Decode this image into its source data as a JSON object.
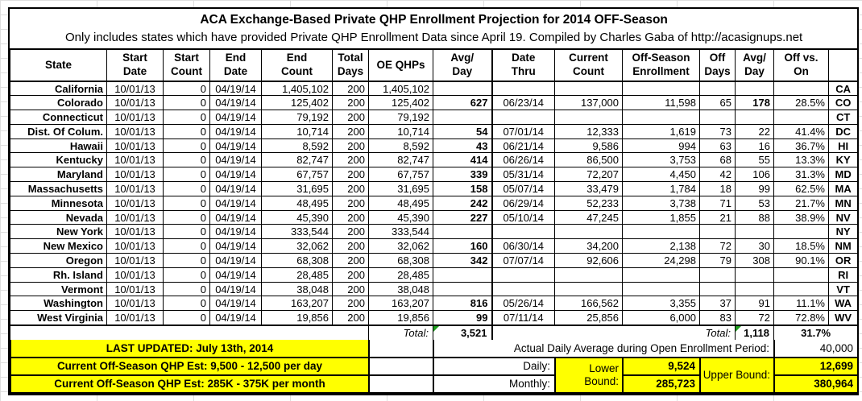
{
  "header": {
    "title": "ACA Exchange-Based Private QHP Enrollment Projection for 2014 OFF-Season",
    "subtitle": "Only includes states which have provided Private QHP Enrollment Data since April 19. Compiled by Charles Gaba of http://acasignups.net"
  },
  "table": {
    "columns": [
      {
        "key": "state",
        "label": "State"
      },
      {
        "key": "start_date",
        "label": "Start\nDate"
      },
      {
        "key": "start_count",
        "label": "Start\nCount"
      },
      {
        "key": "end_date",
        "label": "End\nDate"
      },
      {
        "key": "end_count",
        "label": "End\nCount"
      },
      {
        "key": "total_days",
        "label": "Total\nDays"
      },
      {
        "key": "oe_qhps",
        "label": "OE QHPs"
      },
      {
        "key": "avg_day",
        "label": "Avg/\nDay"
      },
      {
        "key": "date_thru",
        "label": "Date\nThru"
      },
      {
        "key": "current_count",
        "label": "Current\nCount"
      },
      {
        "key": "off_enroll",
        "label": "Off-Season\nEnrollment"
      },
      {
        "key": "off_days",
        "label": "Off\nDays"
      },
      {
        "key": "off_avg",
        "label": "Avg/\nDay"
      },
      {
        "key": "off_vs_on",
        "label": "Off vs.\nOn"
      },
      {
        "key": "abbr",
        "label": ""
      }
    ],
    "rows": [
      {
        "state": "California",
        "start_date": "10/01/13",
        "start_count": "0",
        "end_date": "04/19/14",
        "end_count": "1,405,102",
        "total_days": "200",
        "oe_qhps": "1,405,102",
        "avg_day": "",
        "date_thru": "",
        "current_count": "",
        "off_enroll": "",
        "off_days": "",
        "off_avg": "",
        "off_vs_on": "",
        "abbr": "CA"
      },
      {
        "state": "Colorado",
        "start_date": "10/01/13",
        "start_count": "0",
        "end_date": "04/19/14",
        "end_count": "125,402",
        "total_days": "200",
        "oe_qhps": "125,402",
        "avg_day": "627",
        "date_thru": "06/23/14",
        "current_count": "137,000",
        "off_enroll": "11,598",
        "off_days": "65",
        "off_avg": "178",
        "off_avg_bold": true,
        "off_vs_on": "28.5%",
        "abbr": "CO"
      },
      {
        "state": "Connecticut",
        "start_date": "10/01/13",
        "start_count": "0",
        "end_date": "04/19/14",
        "end_count": "79,192",
        "total_days": "200",
        "oe_qhps": "79,192",
        "avg_day": "",
        "date_thru": "",
        "current_count": "",
        "off_enroll": "",
        "off_days": "",
        "off_avg": "",
        "off_vs_on": "",
        "abbr": "CT"
      },
      {
        "state": "Dist. Of Colum.",
        "start_date": "10/01/13",
        "start_count": "0",
        "end_date": "04/19/14",
        "end_count": "10,714",
        "total_days": "200",
        "oe_qhps": "10,714",
        "avg_day": "54",
        "date_thru": "07/01/14",
        "current_count": "12,333",
        "off_enroll": "1,619",
        "off_days": "73",
        "off_avg": "22",
        "off_vs_on": "41.4%",
        "abbr": "DC"
      },
      {
        "state": "Hawaii",
        "start_date": "10/01/13",
        "start_count": "0",
        "end_date": "04/19/14",
        "end_count": "8,592",
        "total_days": "200",
        "oe_qhps": "8,592",
        "avg_day": "43",
        "date_thru": "06/21/14",
        "current_count": "9,586",
        "off_enroll": "994",
        "off_days": "63",
        "off_avg": "16",
        "off_vs_on": "36.7%",
        "abbr": "HI"
      },
      {
        "state": "Kentucky",
        "start_date": "10/01/13",
        "start_count": "0",
        "end_date": "04/19/14",
        "end_count": "82,747",
        "total_days": "200",
        "oe_qhps": "82,747",
        "avg_day": "414",
        "date_thru": "06/26/14",
        "current_count": "86,500",
        "off_enroll": "3,753",
        "off_days": "68",
        "off_avg": "55",
        "off_vs_on": "13.3%",
        "abbr": "KY"
      },
      {
        "state": "Maryland",
        "start_date": "10/01/13",
        "start_count": "0",
        "end_date": "04/19/14",
        "end_count": "67,757",
        "total_days": "200",
        "oe_qhps": "67,757",
        "avg_day": "339",
        "date_thru": "05/31/14",
        "current_count": "72,207",
        "off_enroll": "4,450",
        "off_days": "42",
        "off_avg": "106",
        "off_vs_on": "31.3%",
        "abbr": "MD"
      },
      {
        "state": "Massachusetts",
        "start_date": "10/01/13",
        "start_count": "0",
        "end_date": "04/19/14",
        "end_count": "31,695",
        "total_days": "200",
        "oe_qhps": "31,695",
        "avg_day": "158",
        "date_thru": "05/07/14",
        "current_count": "33,479",
        "off_enroll": "1,784",
        "off_days": "18",
        "off_avg": "99",
        "off_vs_on": "62.5%",
        "abbr": "MA"
      },
      {
        "state": "Minnesota",
        "start_date": "10/01/13",
        "start_count": "0",
        "end_date": "04/19/14",
        "end_count": "48,495",
        "total_days": "200",
        "oe_qhps": "48,495",
        "avg_day": "242",
        "date_thru": "06/29/14",
        "current_count": "52,233",
        "off_enroll": "3,738",
        "off_days": "71",
        "off_avg": "53",
        "off_vs_on": "21.7%",
        "abbr": "MN"
      },
      {
        "state": "Nevada",
        "start_date": "10/01/13",
        "start_count": "0",
        "end_date": "04/19/14",
        "end_count": "45,390",
        "total_days": "200",
        "oe_qhps": "45,390",
        "avg_day": "227",
        "date_thru": "05/10/14",
        "current_count": "47,245",
        "off_enroll": "1,855",
        "off_days": "21",
        "off_avg": "88",
        "off_vs_on": "38.9%",
        "abbr": "NV"
      },
      {
        "state": "New York",
        "start_date": "10/01/13",
        "start_count": "0",
        "end_date": "04/19/14",
        "end_count": "333,544",
        "total_days": "200",
        "oe_qhps": "333,544",
        "avg_day": "",
        "date_thru": "",
        "current_count": "",
        "off_enroll": "",
        "off_days": "",
        "off_avg": "",
        "off_vs_on": "",
        "abbr": "NY"
      },
      {
        "state": "New Mexico",
        "start_date": "10/01/13",
        "start_count": "0",
        "end_date": "04/19/14",
        "end_count": "32,062",
        "total_days": "200",
        "oe_qhps": "32,062",
        "avg_day": "160",
        "date_thru": "06/30/14",
        "current_count": "34,200",
        "off_enroll": "2,138",
        "off_days": "72",
        "off_avg": "30",
        "off_vs_on": "18.5%",
        "abbr": "NM"
      },
      {
        "state": "Oregon",
        "start_date": "10/01/13",
        "start_count": "0",
        "end_date": "04/19/14",
        "end_count": "68,308",
        "total_days": "200",
        "oe_qhps": "68,308",
        "avg_day": "342",
        "date_thru": "07/07/14",
        "current_count": "92,606",
        "off_enroll": "24,298",
        "off_days": "79",
        "off_avg": "308",
        "off_vs_on": "90.1%",
        "abbr": "OR"
      },
      {
        "state": "Rh. Island",
        "start_date": "10/01/13",
        "start_count": "0",
        "end_date": "04/19/14",
        "end_count": "28,485",
        "total_days": "200",
        "oe_qhps": "28,485",
        "avg_day": "",
        "date_thru": "",
        "current_count": "",
        "off_enroll": "",
        "off_days": "",
        "off_avg": "",
        "off_vs_on": "",
        "abbr": "RI"
      },
      {
        "state": "Vermont",
        "start_date": "10/01/13",
        "start_count": "0",
        "end_date": "04/19/14",
        "end_count": "38,048",
        "total_days": "200",
        "oe_qhps": "38,048",
        "avg_day": "",
        "date_thru": "",
        "current_count": "",
        "off_enroll": "",
        "off_days": "",
        "off_avg": "",
        "off_vs_on": "",
        "abbr": "VT"
      },
      {
        "state": "Washington",
        "start_date": "10/01/13",
        "start_count": "0",
        "end_date": "04/19/14",
        "end_count": "163,207",
        "total_days": "200",
        "oe_qhps": "163,207",
        "avg_day": "816",
        "date_thru": "05/26/14",
        "current_count": "166,562",
        "off_enroll": "3,355",
        "off_days": "37",
        "off_avg": "91",
        "off_vs_on": "11.1%",
        "abbr": "WA"
      },
      {
        "state": "West Virginia",
        "start_date": "10/01/13",
        "start_count": "0",
        "end_date": "04/19/14",
        "end_count": "19,856",
        "total_days": "200",
        "oe_qhps": "19,856",
        "avg_day": "99",
        "date_thru": "07/11/14",
        "current_count": "25,856",
        "off_enroll": "6,000",
        "off_days": "83",
        "off_avg": "72",
        "off_vs_on": "72.8%",
        "abbr": "WV"
      }
    ],
    "total": {
      "label_oe": "Total:",
      "oe_avg_total": "3,521",
      "label_off": "Total:",
      "off_avg_total": "1,118",
      "off_vs_on_total": "31.7%"
    }
  },
  "footer": {
    "last_updated": "LAST UPDATED: July 13th, 2014",
    "daily_estimate": "Current Off-Season QHP Est: 9,500 - 12,500 per day",
    "monthly_estimate": "Current Off-Season QHP Est: 285K - 375K per month",
    "oe_daily_avg_label": "Actual Daily Average during Open Enrollment Period:",
    "oe_daily_avg_value": "40,000",
    "daily_label": "Daily:",
    "monthly_label": "Monthly:",
    "lower_bound_label": "Lower Bound:",
    "upper_bound_label": "Upper Bound:",
    "daily_lower": "9,524",
    "daily_upper": "12,699",
    "monthly_lower": "285,723",
    "monthly_upper": "380,964"
  },
  "colors": {
    "highlight_yellow": "#ffff00",
    "flag_green": "#1e9e1e",
    "border_black": "#000000"
  }
}
